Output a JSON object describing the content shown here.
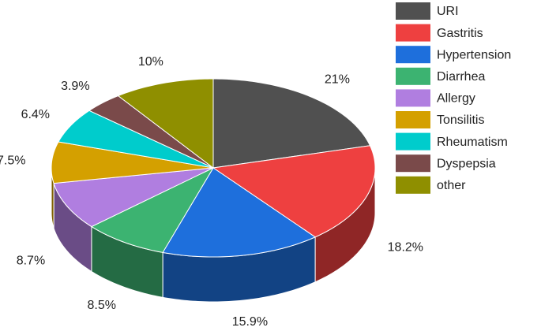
{
  "chart_data": {
    "type": "pie",
    "categories": [
      "URI",
      "Gastritis",
      "Hypertension",
      "Diarrhea",
      "Allergy",
      "Tonsilitis",
      "Rheumatism",
      "Dyspepsia",
      "other"
    ],
    "values": [
      21,
      18.2,
      15.9,
      8.5,
      8.7,
      7.5,
      6.4,
      3.9,
      10
    ],
    "value_labels": [
      "21%",
      "18.2%",
      "15.9%",
      "8.5%",
      "8.7%",
      "7.5%",
      "6.4%",
      "3.9%",
      "10%"
    ],
    "colors": [
      "#505050",
      "#ee4040",
      "#1e6fdc",
      "#3cb371",
      "#b07ee0",
      "#d4a000",
      "#00cccc",
      "#7a4a4a",
      "#8f8f00"
    ],
    "legend": "right"
  }
}
